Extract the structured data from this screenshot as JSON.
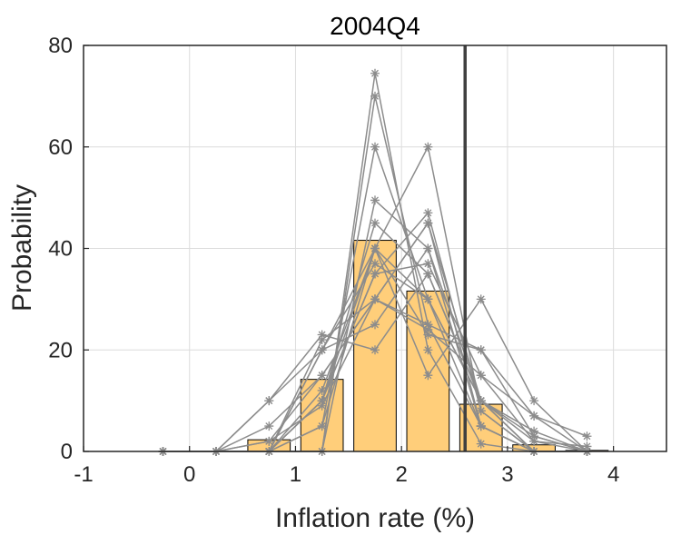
{
  "chart_data": {
    "type": "bar",
    "title": "2004Q4",
    "xlabel": "Inflation rate (%)",
    "ylabel": "Probability",
    "xlim": [
      -1,
      4.5
    ],
    "ylim": [
      0,
      80
    ],
    "xticks": [
      -1,
      0,
      1,
      2,
      3,
      4
    ],
    "yticks": [
      0,
      20,
      40,
      60,
      80
    ],
    "grid": true,
    "bin_centers": [
      -0.25,
      0.25,
      0.75,
      1.25,
      1.75,
      2.25,
      2.75,
      3.25,
      3.75
    ],
    "values": [
      0,
      0,
      2.3,
      14.2,
      41.6,
      31.6,
      9.3,
      1.3,
      0.2
    ],
    "vertical_line_x": 2.6,
    "colors": {
      "bar_fill": "#ffce7a",
      "bar_edge": "#000000",
      "individual_lines": "#8c8c8c",
      "vertical_line": "#404040",
      "grid": "#dcdcdc"
    },
    "individual_series": [
      {
        "values": [
          0,
          0,
          0,
          0,
          74.5,
          20,
          1.5,
          0,
          0
        ]
      },
      {
        "values": [
          0,
          0,
          0,
          0,
          70,
          25,
          5,
          0,
          0
        ]
      },
      {
        "values": [
          0,
          0,
          0,
          5,
          60,
          30,
          5,
          0,
          0
        ]
      },
      {
        "values": [
          0,
          0,
          0,
          0,
          49.5,
          40,
          10,
          0,
          0
        ]
      },
      {
        "values": [
          0,
          0,
          0,
          10,
          45,
          35,
          10,
          0,
          0
        ]
      },
      {
        "values": [
          0,
          0,
          0,
          20,
          40,
          30,
          10,
          0,
          0
        ]
      },
      {
        "values": [
          0,
          0,
          0,
          20,
          37,
          30,
          10,
          3,
          0
        ]
      },
      {
        "values": [
          0,
          0,
          0,
          10,
          35,
          47,
          8,
          0,
          0
        ]
      },
      {
        "values": [
          0,
          0,
          5,
          15,
          30,
          45,
          5,
          0,
          0
        ]
      },
      {
        "values": [
          0,
          0,
          10,
          20,
          25,
          40,
          5,
          0,
          0
        ]
      },
      {
        "values": [
          0,
          0,
          10,
          23,
          20,
          35,
          10,
          2,
          0
        ]
      },
      {
        "values": [
          0,
          0,
          0,
          22,
          30,
          25,
          20,
          3,
          0
        ]
      },
      {
        "values": [
          0,
          0,
          0,
          12,
          40,
          60,
          8,
          0,
          0
        ]
      },
      {
        "values": [
          0,
          0,
          2,
          9,
          30,
          45,
          10,
          4,
          0
        ]
      },
      {
        "values": [
          0,
          0,
          2,
          15,
          30,
          24,
          15,
          7,
          3
        ]
      },
      {
        "values": [
          0,
          0,
          0,
          5,
          40,
          15,
          30,
          10,
          0
        ]
      },
      {
        "values": [
          0,
          0,
          0,
          10,
          40,
          23,
          20,
          7,
          0
        ]
      },
      {
        "values": [
          0,
          0,
          0,
          10,
          35,
          37,
          15,
          2,
          1
        ]
      }
    ]
  }
}
